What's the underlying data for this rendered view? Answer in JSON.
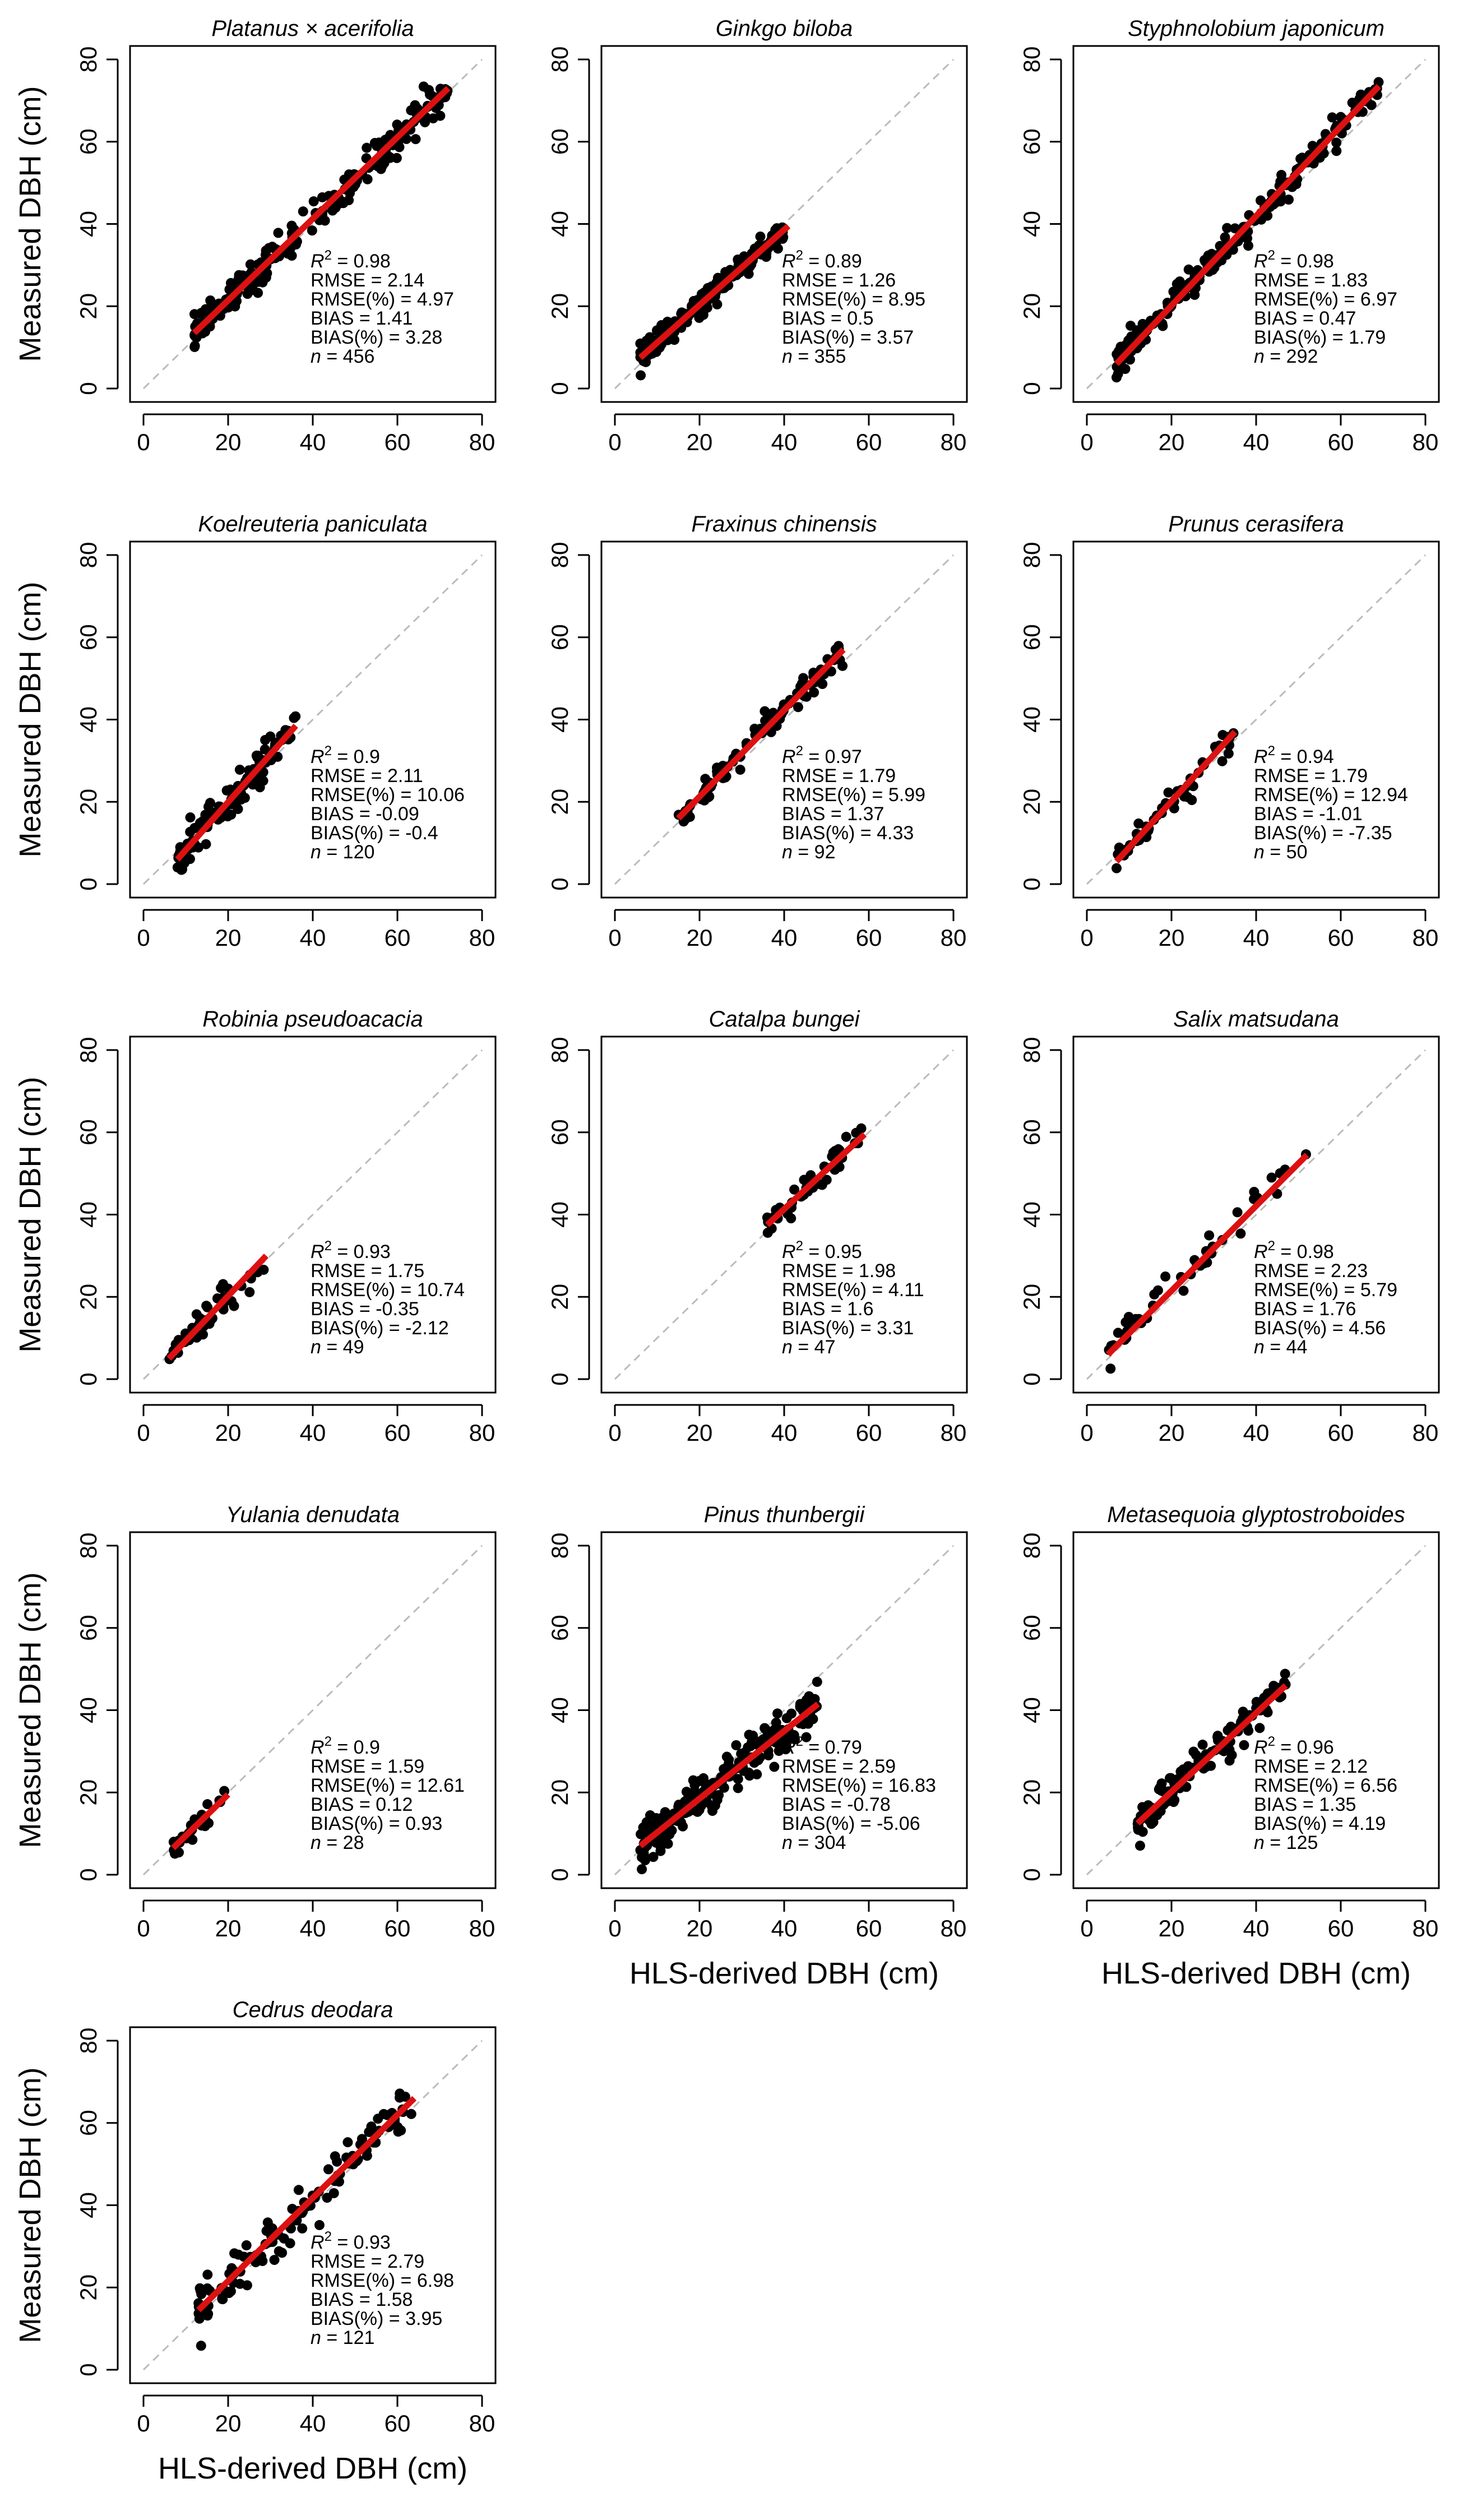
{
  "figure": {
    "ylabel": "Measured DBH (cm)",
    "xlabel": "HLS-derived DBH (cm)",
    "colors": {
      "points": "#000000",
      "fit_line": "#dd1111",
      "one_to_one": "#bbbbbb",
      "axes": "#000000"
    }
  },
  "chart_data": [
    {
      "type": "scatter",
      "title": "Platanus × acerifolia",
      "xlim": [
        0,
        80
      ],
      "ylim": [
        0,
        80
      ],
      "xticks": [
        0,
        20,
        40,
        60,
        80
      ],
      "yticks": [
        0,
        20,
        40,
        60,
        80
      ],
      "x_range": [
        12,
        72
      ],
      "fit": {
        "x0": 12,
        "y0": 13.5,
        "x1": 72,
        "y1": 73
      },
      "stats": {
        "r2": "0.98",
        "rmse": "2.14",
        "rmse_pct": "4.97",
        "bias": "1.41",
        "bias_pct": "3.28",
        "n": "456"
      }
    },
    {
      "type": "scatter",
      "title": "Ginkgo biloba",
      "xlim": [
        0,
        80
      ],
      "ylim": [
        0,
        80
      ],
      "xticks": [
        0,
        20,
        40,
        60,
        80
      ],
      "yticks": [
        0,
        20,
        40,
        60,
        80
      ],
      "x_range": [
        6,
        41
      ],
      "fit": {
        "x0": 6,
        "y0": 7.5,
        "x1": 41,
        "y1": 39.5
      },
      "stats": {
        "r2": "0.89",
        "rmse": "1.26",
        "rmse_pct": "8.95",
        "bias": "0.5",
        "bias_pct": "3.57",
        "n": "355"
      }
    },
    {
      "type": "scatter",
      "title": "Styphnolobium japonicum",
      "xlim": [
        0,
        80
      ],
      "ylim": [
        0,
        80
      ],
      "xticks": [
        0,
        20,
        40,
        60,
        80
      ],
      "yticks": [
        0,
        20,
        40,
        60,
        80
      ],
      "x_range": [
        7,
        69
      ],
      "fit": {
        "x0": 7,
        "y0": 6,
        "x1": 69,
        "y1": 73.5
      },
      "stats": {
        "r2": "0.98",
        "rmse": "1.83",
        "rmse_pct": "6.97",
        "bias": "0.47",
        "bias_pct": "1.79",
        "n": "292"
      }
    },
    {
      "type": "scatter",
      "title": "Koelreuteria paniculata",
      "xlim": [
        0,
        80
      ],
      "ylim": [
        0,
        80
      ],
      "xticks": [
        0,
        20,
        40,
        60,
        80
      ],
      "yticks": [
        0,
        20,
        40,
        60,
        80
      ],
      "x_range": [
        8,
        36
      ],
      "fit": {
        "x0": 8,
        "y0": 6,
        "x1": 36,
        "y1": 38.5
      },
      "stats": {
        "r2": "0.9",
        "rmse": "2.11",
        "rmse_pct": "10.06",
        "bias": "-0.09",
        "bias_pct": "-0.4",
        "n": "120"
      }
    },
    {
      "type": "scatter",
      "title": "Fraxinus chinensis",
      "xlim": [
        0,
        80
      ],
      "ylim": [
        0,
        80
      ],
      "xticks": [
        0,
        20,
        40,
        60,
        80
      ],
      "yticks": [
        0,
        20,
        40,
        60,
        80
      ],
      "x_range": [
        15,
        54
      ],
      "fit": {
        "x0": 15,
        "y0": 16,
        "x1": 54,
        "y1": 57
      },
      "stats": {
        "r2": "0.97",
        "rmse": "1.79",
        "rmse_pct": "5.99",
        "bias": "1.37",
        "bias_pct": "4.33",
        "n": "92"
      }
    },
    {
      "type": "scatter",
      "title": "Prunus cerasifera",
      "xlim": [
        0,
        80
      ],
      "ylim": [
        0,
        80
      ],
      "xticks": [
        0,
        20,
        40,
        60,
        80
      ],
      "yticks": [
        0,
        20,
        40,
        60,
        80
      ],
      "x_range": [
        7,
        35
      ],
      "fit": {
        "x0": 7,
        "y0": 5.5,
        "x1": 35,
        "y1": 37
      },
      "stats": {
        "r2": "0.94",
        "rmse": "1.79",
        "rmse_pct": "12.94",
        "bias": "-1.01",
        "bias_pct": "-7.35",
        "n": "50"
      }
    },
    {
      "type": "scatter",
      "title": "Robinia pseudoacacia",
      "xlim": [
        0,
        80
      ],
      "ylim": [
        0,
        80
      ],
      "xticks": [
        0,
        20,
        40,
        60,
        80
      ],
      "yticks": [
        0,
        20,
        40,
        60,
        80
      ],
      "x_range": [
        6,
        29
      ],
      "fit": {
        "x0": 6,
        "y0": 5,
        "x1": 29,
        "y1": 30
      },
      "stats": {
        "r2": "0.93",
        "rmse": "1.75",
        "rmse_pct": "10.74",
        "bias": "-0.35",
        "bias_pct": "-2.12",
        "n": "49"
      }
    },
    {
      "type": "scatter",
      "title": "Catalpa bungei",
      "xlim": [
        0,
        80
      ],
      "ylim": [
        0,
        80
      ],
      "xticks": [
        0,
        20,
        40,
        60,
        80
      ],
      "yticks": [
        0,
        20,
        40,
        60,
        80
      ],
      "x_range": [
        36,
        59
      ],
      "fit": {
        "x0": 36,
        "y0": 37.5,
        "x1": 59,
        "y1": 59.5
      },
      "stats": {
        "r2": "0.95",
        "rmse": "1.98",
        "rmse_pct": "4.11",
        "bias": "1.6",
        "bias_pct": "3.31",
        "n": "47"
      }
    },
    {
      "type": "scatter",
      "title": "Salix matsudana",
      "xlim": [
        0,
        80
      ],
      "ylim": [
        0,
        80
      ],
      "xticks": [
        0,
        20,
        40,
        60,
        80
      ],
      "yticks": [
        0,
        20,
        40,
        60,
        80
      ],
      "x_range": [
        5,
        52
      ],
      "fit": {
        "x0": 5,
        "y0": 6,
        "x1": 52,
        "y1": 54.5
      },
      "stats": {
        "r2": "0.98",
        "rmse": "2.23",
        "rmse_pct": "5.79",
        "bias": "1.76",
        "bias_pct": "4.56",
        "n": "44"
      }
    },
    {
      "type": "scatter",
      "title": "Yulania denudata",
      "xlim": [
        0,
        80
      ],
      "ylim": [
        0,
        80
      ],
      "xticks": [
        0,
        20,
        40,
        60,
        80
      ],
      "yticks": [
        0,
        20,
        40,
        60,
        80
      ],
      "x_range": [
        7,
        20
      ],
      "fit": {
        "x0": 7,
        "y0": 6.5,
        "x1": 20,
        "y1": 19.5
      },
      "stats": {
        "r2": "0.9",
        "rmse": "1.59",
        "rmse_pct": "12.61",
        "bias": "0.12",
        "bias_pct": "0.93",
        "n": "28"
      }
    },
    {
      "type": "scatter",
      "title": "Pinus thunbergii",
      "xlim": [
        0,
        80
      ],
      "ylim": [
        0,
        80
      ],
      "xticks": [
        0,
        20,
        40,
        60,
        80
      ],
      "yticks": [
        0,
        20,
        40,
        60,
        80
      ],
      "x_range": [
        6,
        48
      ],
      "fit": {
        "x0": 6,
        "y0": 7,
        "x1": 48,
        "y1": 41.5
      },
      "stats": {
        "r2": "0.79",
        "rmse": "2.59",
        "rmse_pct": "16.83",
        "bias": "-0.78",
        "bias_pct": "-5.06",
        "n": "304"
      }
    },
    {
      "type": "scatter",
      "title": "Metasequoia glyptostroboides",
      "xlim": [
        0,
        80
      ],
      "ylim": [
        0,
        80
      ],
      "xticks": [
        0,
        20,
        40,
        60,
        80
      ],
      "yticks": [
        0,
        20,
        40,
        60,
        80
      ],
      "x_range": [
        12,
        47
      ],
      "fit": {
        "x0": 12,
        "y0": 12.5,
        "x1": 47,
        "y1": 46
      },
      "stats": {
        "r2": "0.96",
        "rmse": "2.12",
        "rmse_pct": "6.56",
        "bias": "1.35",
        "bias_pct": "4.19",
        "n": "125"
      }
    },
    {
      "type": "scatter",
      "title": "Cedrus deodara",
      "xlim": [
        0,
        80
      ],
      "ylim": [
        0,
        80
      ],
      "xticks": [
        0,
        20,
        40,
        60,
        80
      ],
      "yticks": [
        0,
        20,
        40,
        60,
        80
      ],
      "x_range": [
        13,
        64
      ],
      "fit": {
        "x0": 13,
        "y0": 14.5,
        "x1": 64,
        "y1": 66
      },
      "stats": {
        "r2": "0.93",
        "rmse": "2.79",
        "rmse_pct": "6.98",
        "bias": "1.58",
        "bias_pct": "3.95",
        "n": "121"
      }
    }
  ]
}
